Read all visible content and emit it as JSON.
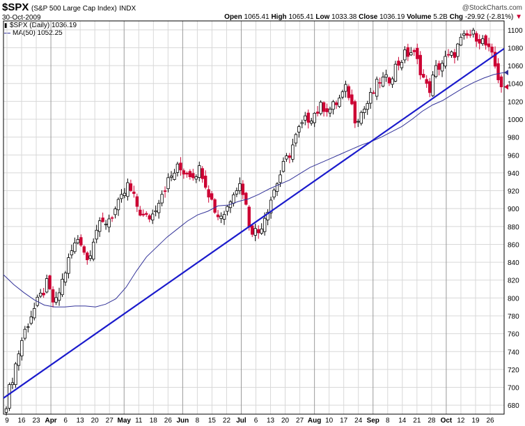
{
  "header": {
    "symbol": "$SPX",
    "name": "(S&P 500 Large Cap Index)",
    "exchange": "INDX",
    "date": "30-Oct-2009",
    "brand": "@StockCharts.com",
    "open_label": "Open",
    "open": "1065.41",
    "high_label": "High",
    "high": "1065.41",
    "low_label": "Low",
    "low": "1033.38",
    "close_label": "Close",
    "close": "1036.19",
    "volume_label": "Volume",
    "volume": "5.2B",
    "chg_label": "Chg",
    "chg": "-29.92 (-2.81%)",
    "chg_arrow": "▼"
  },
  "legend": {
    "price": "$SPX (Daily) 1036.19",
    "ma": "MA(50) 1052.25"
  },
  "colors": {
    "up": "#000000",
    "down": "#cc0033",
    "ma": "#333399",
    "trendline": "#1a1acc",
    "grid": "#d8d8d8",
    "frame": "#000000"
  },
  "chart_data": {
    "type": "candlestick",
    "ylim": [
      670,
      1110
    ],
    "y_ticks": [
      680,
      700,
      720,
      740,
      760,
      780,
      800,
      820,
      840,
      860,
      880,
      900,
      920,
      940,
      960,
      980,
      1000,
      1020,
      1040,
      1060,
      1080,
      1100
    ],
    "x_tick_labels": [
      "9",
      "16",
      "23",
      "Apr",
      "6",
      "13",
      "20",
      "27",
      "May",
      "11",
      "18",
      "26",
      "Jun",
      "8",
      "15",
      "22",
      "Jul",
      "6",
      "13",
      "20",
      "27",
      "Aug",
      "10",
      "17",
      "24",
      "Sep",
      "8",
      "14",
      "21",
      "28",
      "Oct",
      "12",
      "19",
      "26"
    ],
    "month_labels": [
      "Apr",
      "May",
      "Jun",
      "Jul",
      "Aug",
      "Sep",
      "Oct"
    ],
    "close_path": [
      683,
      720,
      756,
      780,
      797,
      815,
      790,
      822,
      851,
      870,
      842,
      876,
      883,
      893,
      906,
      926,
      905,
      888,
      893,
      916,
      931,
      945,
      942,
      939,
      945,
      917,
      892,
      896,
      922,
      928,
      880,
      872,
      896,
      921,
      944,
      964,
      987,
      1000,
      1007,
      1015,
      1011,
      1022,
      1035,
      1001,
      1010,
      1026,
      1044,
      1043,
      1059,
      1071,
      1076,
      1057,
      1030,
      1057,
      1066,
      1071,
      1087,
      1094,
      1094,
      1084,
      1066,
      1036
    ],
    "ma50_path": [
      826,
      815,
      806,
      798,
      792,
      790,
      790,
      791,
      791,
      790,
      793,
      799,
      812,
      830,
      846,
      857,
      868,
      877,
      886,
      893,
      897,
      903,
      904,
      908,
      911,
      916,
      922,
      927,
      932,
      939,
      946,
      951,
      956,
      961,
      966,
      971,
      975,
      980,
      986,
      992,
      1000,
      1009,
      1016,
      1021,
      1028,
      1035,
      1041,
      1046,
      1050,
      1052.25
    ],
    "trendline": [
      [
        0,
        688
      ],
      [
        1,
        1079
      ]
    ],
    "last_close": 1036.19,
    "last_ma50": 1052.25
  }
}
